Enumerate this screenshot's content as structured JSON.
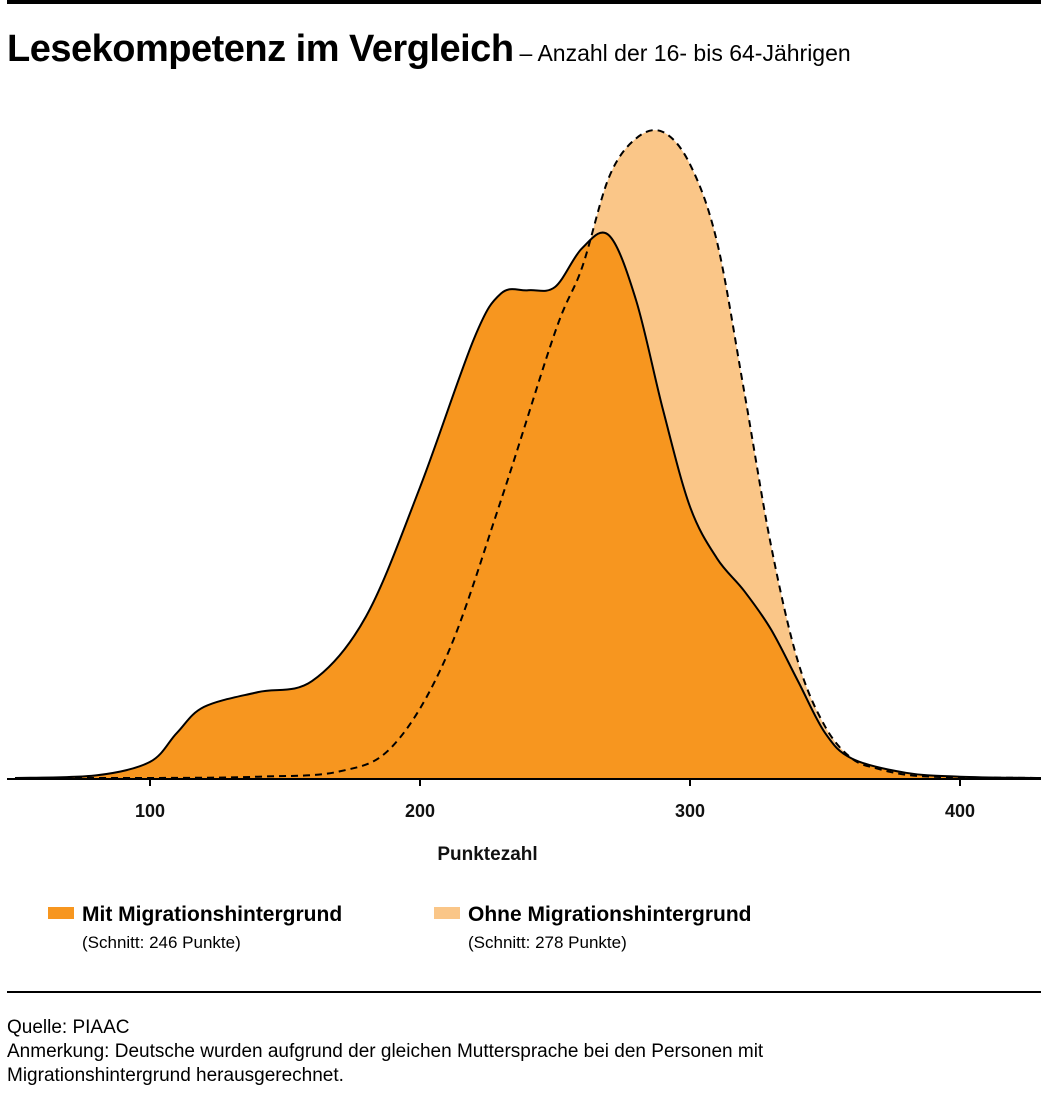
{
  "header": {
    "title": "Lesekompetenz im Vergleich",
    "subtitle": "– Anzahl der 16- bis 64-Jährigen"
  },
  "colors": {
    "mit": "#f7961f",
    "ohne": "#fac688",
    "axis": "#000000"
  },
  "legend": [
    {
      "name": "Mit Migrationshintergrund",
      "note": "(Schnitt: 246 Punkte)"
    },
    {
      "name": "Ohne Migrationshintergrund",
      "note": "(Schnitt: 278 Punkte)"
    }
  ],
  "footer": {
    "source": "Quelle: PIAAC",
    "note_line1": "Anmerkung: Deutsche wurden aufgrund der gleichen Muttersprache bei den Personen mit",
    "note_line2": "Migrationshintergrund herausgerechnet."
  },
  "chart_data": {
    "type": "area",
    "xlabel": "Punktezahl",
    "ylabel": "",
    "xlim": [
      50,
      430
    ],
    "ylim": [
      0,
      1
    ],
    "xticks": [
      100,
      200,
      300,
      400
    ],
    "grid": false,
    "legend_position": "bottom",
    "series": [
      {
        "name": "Ohne Migrationshintergrund",
        "line": "dashed",
        "x": [
          50,
          100,
          140,
          170,
          190,
          210,
          230,
          250,
          260,
          270,
          280,
          290,
          300,
          310,
          320,
          330,
          340,
          350,
          360,
          370,
          380,
          390,
          400,
          430
        ],
        "y": [
          0,
          0,
          0.002,
          0.01,
          0.05,
          0.19,
          0.43,
          0.69,
          0.79,
          0.93,
          0.99,
          1.0,
          0.95,
          0.83,
          0.6,
          0.36,
          0.18,
          0.08,
          0.03,
          0.014,
          0.005,
          0.002,
          0.001,
          0
        ]
      },
      {
        "name": "Mit Migrationshintergrund",
        "line": "solid",
        "x": [
          50,
          80,
          100,
          110,
          120,
          140,
          160,
          180,
          200,
          220,
          230,
          240,
          250,
          260,
          270,
          280,
          290,
          300,
          310,
          320,
          330,
          340,
          350,
          360,
          380,
          400,
          430
        ],
        "y": [
          0,
          0.004,
          0.025,
          0.07,
          0.11,
          0.133,
          0.15,
          0.25,
          0.45,
          0.68,
          0.75,
          0.755,
          0.76,
          0.82,
          0.84,
          0.74,
          0.57,
          0.42,
          0.34,
          0.29,
          0.23,
          0.15,
          0.07,
          0.03,
          0.008,
          0.002,
          0
        ]
      }
    ]
  }
}
